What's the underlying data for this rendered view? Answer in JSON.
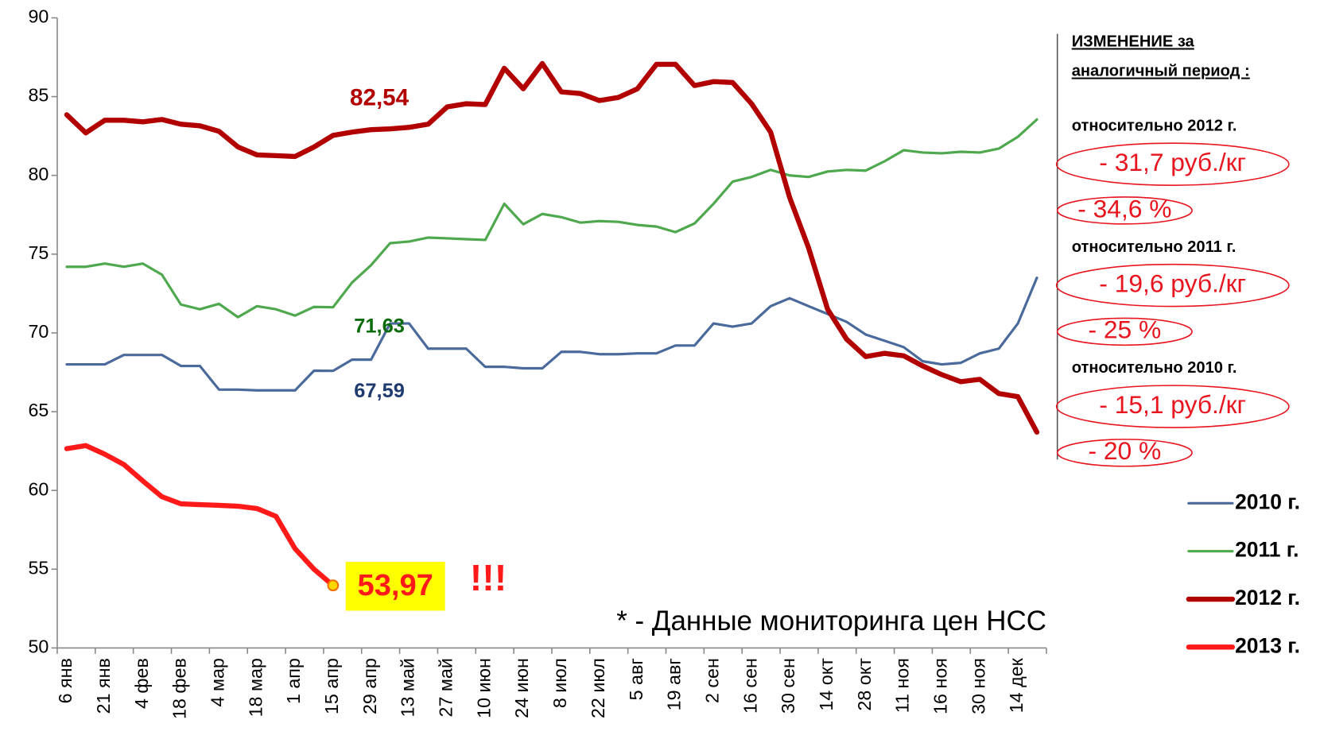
{
  "chart_data": {
    "type": "line",
    "categories": [
      "6 янв",
      null,
      "21 янв",
      null,
      "4 фев",
      null,
      "18 фев",
      null,
      "4 мар",
      null,
      "18 мар",
      null,
      "1 апр",
      null,
      "15 апр",
      null,
      "29 апр",
      null,
      "13 май",
      null,
      "27 май",
      null,
      "10 июн",
      null,
      "24 июн",
      null,
      "8 июл",
      null,
      "22 июл",
      null,
      "5 авг",
      null,
      "19 авг",
      null,
      "2 сен",
      null,
      "16 сен",
      null,
      "30 сен",
      null,
      "14 окт",
      null,
      "28 окт",
      null,
      "11 ноя",
      null,
      "16 ноя",
      null,
      "30 ноя",
      null,
      "14 дек",
      null
    ],
    "series": [
      {
        "name": "2010 г.",
        "color": "#4a6a9c",
        "width": 3,
        "values": [
          68.0,
          68.0,
          68.0,
          68.6,
          68.6,
          68.6,
          67.9,
          67.9,
          66.4,
          66.4,
          66.35,
          66.35,
          66.35,
          67.6,
          67.59,
          68.3,
          68.3,
          70.6,
          70.6,
          69.0,
          69.0,
          69.0,
          67.85,
          67.85,
          67.75,
          67.75,
          68.8,
          68.8,
          68.65,
          68.65,
          68.7,
          68.7,
          69.2,
          69.2,
          70.6,
          70.4,
          70.6,
          71.7,
          72.2,
          71.7,
          71.2,
          70.7,
          69.9,
          69.5,
          69.1,
          68.2,
          68.0,
          68.1,
          68.7,
          69.0,
          70.6,
          73.5
        ],
        "value_labels": [
          null,
          null,
          null,
          null,
          null,
          null,
          null,
          null,
          null,
          null,
          null,
          null,
          null,
          null,
          "67,59",
          null,
          null,
          null,
          null,
          null,
          null,
          null,
          null,
          null,
          null,
          null,
          null,
          null,
          null,
          null,
          null,
          null,
          null,
          null,
          null,
          null,
          null,
          null,
          null,
          null,
          null,
          null,
          null,
          null,
          null,
          null,
          null,
          null,
          null,
          null,
          null,
          null
        ],
        "label_color": "#1f3a6e"
      },
      {
        "name": "2011 г.",
        "color": "#4ea84e",
        "width": 3,
        "values": [
          74.2,
          74.2,
          74.4,
          74.2,
          74.4,
          73.7,
          71.8,
          71.5,
          71.85,
          71.0,
          71.7,
          71.5,
          71.1,
          71.65,
          71.63,
          73.2,
          74.3,
          75.7,
          75.8,
          76.05,
          76.0,
          75.95,
          75.9,
          78.2,
          76.9,
          77.55,
          77.35,
          77.0,
          77.1,
          77.05,
          76.85,
          76.75,
          76.4,
          76.95,
          78.2,
          79.6,
          79.9,
          80.35,
          80.0,
          79.9,
          80.25,
          80.35,
          80.3,
          80.9,
          81.6,
          81.45,
          81.4,
          81.5,
          81.45,
          81.7,
          82.45,
          83.55
        ],
        "value_labels": [
          null,
          null,
          null,
          null,
          null,
          null,
          null,
          null,
          null,
          null,
          null,
          null,
          null,
          null,
          "71,63",
          null,
          null,
          null,
          null,
          null,
          null,
          null,
          null,
          null,
          null,
          null,
          null,
          null,
          null,
          null,
          null,
          null,
          null,
          null,
          null,
          null,
          null,
          null,
          null,
          null,
          null,
          null,
          null,
          null,
          null,
          null,
          null,
          null,
          null,
          null,
          null,
          null
        ],
        "label_color": "#0a6b0a"
      },
      {
        "name": "2012 г.",
        "color": "#b20000",
        "width": 6,
        "values": [
          83.85,
          82.7,
          83.5,
          83.5,
          83.4,
          83.55,
          83.25,
          83.15,
          82.8,
          81.8,
          81.3,
          81.25,
          81.2,
          81.8,
          82.54,
          82.75,
          82.9,
          82.95,
          83.05,
          83.25,
          84.35,
          84.55,
          84.5,
          86.8,
          85.5,
          87.1,
          85.3,
          85.2,
          84.75,
          84.95,
          85.5,
          87.05,
          87.05,
          85.7,
          85.95,
          85.9,
          84.55,
          82.75,
          78.6,
          75.4,
          71.5,
          69.6,
          68.5,
          68.7,
          68.55,
          67.9,
          67.35,
          66.9,
          67.05,
          66.15,
          65.95,
          63.7
        ],
        "value_labels": [
          null,
          null,
          null,
          null,
          null,
          null,
          null,
          null,
          null,
          null,
          null,
          null,
          null,
          null,
          "82,54",
          null,
          null,
          null,
          null,
          null,
          null,
          null,
          null,
          null,
          null,
          null,
          null,
          null,
          null,
          null,
          null,
          null,
          null,
          null,
          null,
          null,
          null,
          null,
          null,
          null,
          null,
          null,
          null,
          null,
          null,
          null,
          null,
          null,
          null,
          null,
          null,
          null
        ],
        "label_color": "#b20000"
      },
      {
        "name": "2013 г.",
        "color": "#ff1a1a",
        "width": 6,
        "values": [
          62.65,
          62.85,
          62.3,
          61.65,
          60.6,
          59.6,
          59.15,
          59.1,
          59.05,
          59.0,
          58.85,
          58.35,
          56.3,
          55.0,
          53.97,
          null,
          null,
          null,
          null,
          null,
          null,
          null,
          null,
          null,
          null,
          null,
          null,
          null,
          null,
          null,
          null,
          null,
          null,
          null,
          null,
          null,
          null,
          null,
          null,
          null,
          null,
          null,
          null,
          null,
          null,
          null,
          null,
          null,
          null,
          null,
          null,
          null
        ],
        "value_labels": [
          null,
          null,
          null,
          null,
          null,
          null,
          null,
          null,
          null,
          null,
          null,
          null,
          null,
          null,
          "53,97",
          null,
          null,
          null,
          null,
          null,
          null,
          null,
          null,
          null,
          null,
          null,
          null,
          null,
          null,
          null,
          null,
          null,
          null,
          null,
          null,
          null,
          null,
          null,
          null,
          null,
          null,
          null,
          null,
          null,
          null,
          null,
          null,
          null,
          null,
          null,
          null,
          null
        ],
        "label_color": "#ff1a1a"
      }
    ],
    "ylim": [
      50,
      90
    ],
    "yticks": [
      50,
      55,
      60,
      65,
      70,
      75,
      80,
      85,
      90
    ],
    "grid": false,
    "legend": "right",
    "annotations": [
      "!!!",
      "* - Данные мониторинга цен НСС"
    ],
    "panel": {
      "title": [
        "ИЗМЕНЕНИЕ  за",
        "аналогичный период :"
      ],
      "groups": [
        {
          "label": "относительно 2012 г.",
          "abs": "- 31,7 руб./кг",
          "pct": "- 34,6 %"
        },
        {
          "label": "относительно 2011 г.",
          "abs": "- 19,6 руб./кг",
          "pct": "- 25 %"
        },
        {
          "label": "относительно 2010 г.",
          "abs": "- 15,1 руб./кг",
          "pct": "- 20 %"
        }
      ]
    }
  }
}
